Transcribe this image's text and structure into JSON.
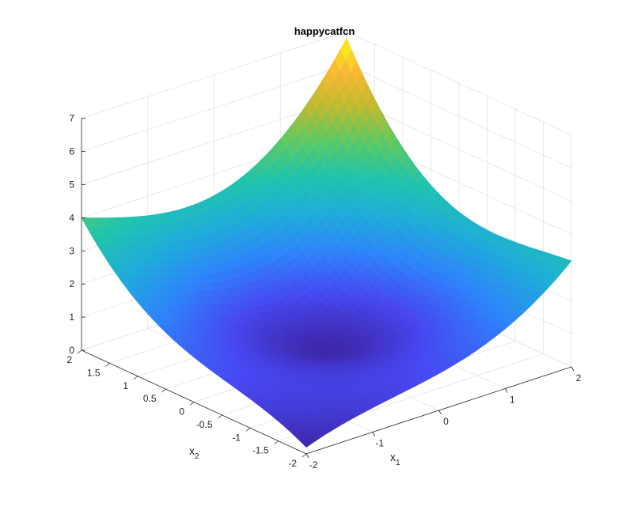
{
  "chart_data": {
    "type": "surface",
    "title": "happycatfcn",
    "xlabel": "x",
    "xlabel_sub": "1",
    "ylabel": "x",
    "ylabel_sub": "2",
    "zlabel": "",
    "xlim": [
      -2,
      2
    ],
    "ylim": [
      -2,
      2
    ],
    "zlim": [
      0,
      7
    ],
    "x_ticks": [
      {
        "value": -2,
        "label": "-2"
      },
      {
        "value": -1,
        "label": "-1"
      },
      {
        "value": 0,
        "label": "0"
      },
      {
        "value": 1,
        "label": "1"
      },
      {
        "value": 2,
        "label": "2"
      }
    ],
    "y_ticks": [
      {
        "value": -2,
        "label": "-2"
      },
      {
        "value": -1.5,
        "label": "-1.5"
      },
      {
        "value": -1,
        "label": "-1"
      },
      {
        "value": -0.5,
        "label": "-0.5"
      },
      {
        "value": 0,
        "label": "0"
      },
      {
        "value": 0.5,
        "label": "0.5"
      },
      {
        "value": 1,
        "label": "1"
      },
      {
        "value": 1.5,
        "label": "1.5"
      },
      {
        "value": 2,
        "label": "2"
      }
    ],
    "z_ticks": [
      {
        "value": 0,
        "label": "0"
      },
      {
        "value": 1,
        "label": "1"
      },
      {
        "value": 2,
        "label": "2"
      },
      {
        "value": 3,
        "label": "3"
      },
      {
        "value": 4,
        "label": "4"
      },
      {
        "value": 5,
        "label": "5"
      },
      {
        "value": 6,
        "label": "6"
      },
      {
        "value": 7,
        "label": "7"
      }
    ],
    "corner_values": [
      {
        "x": 2,
        "y": 2,
        "z": 6.8
      },
      {
        "x": -2,
        "y": 2,
        "z": 4.0
      },
      {
        "x": 2,
        "y": -2,
        "z": 3.2
      },
      {
        "x": -2,
        "y": -2,
        "z": 0.2
      }
    ],
    "minimum_z": 0.2,
    "grid": true,
    "colormap": "parula",
    "colormap_stops": [
      "#3e26a8",
      "#4748f2",
      "#2e84fa",
      "#1fadd9",
      "#20c4ad",
      "#5dc963",
      "#c1ba2f",
      "#fbb935",
      "#f9fb15"
    ]
  }
}
